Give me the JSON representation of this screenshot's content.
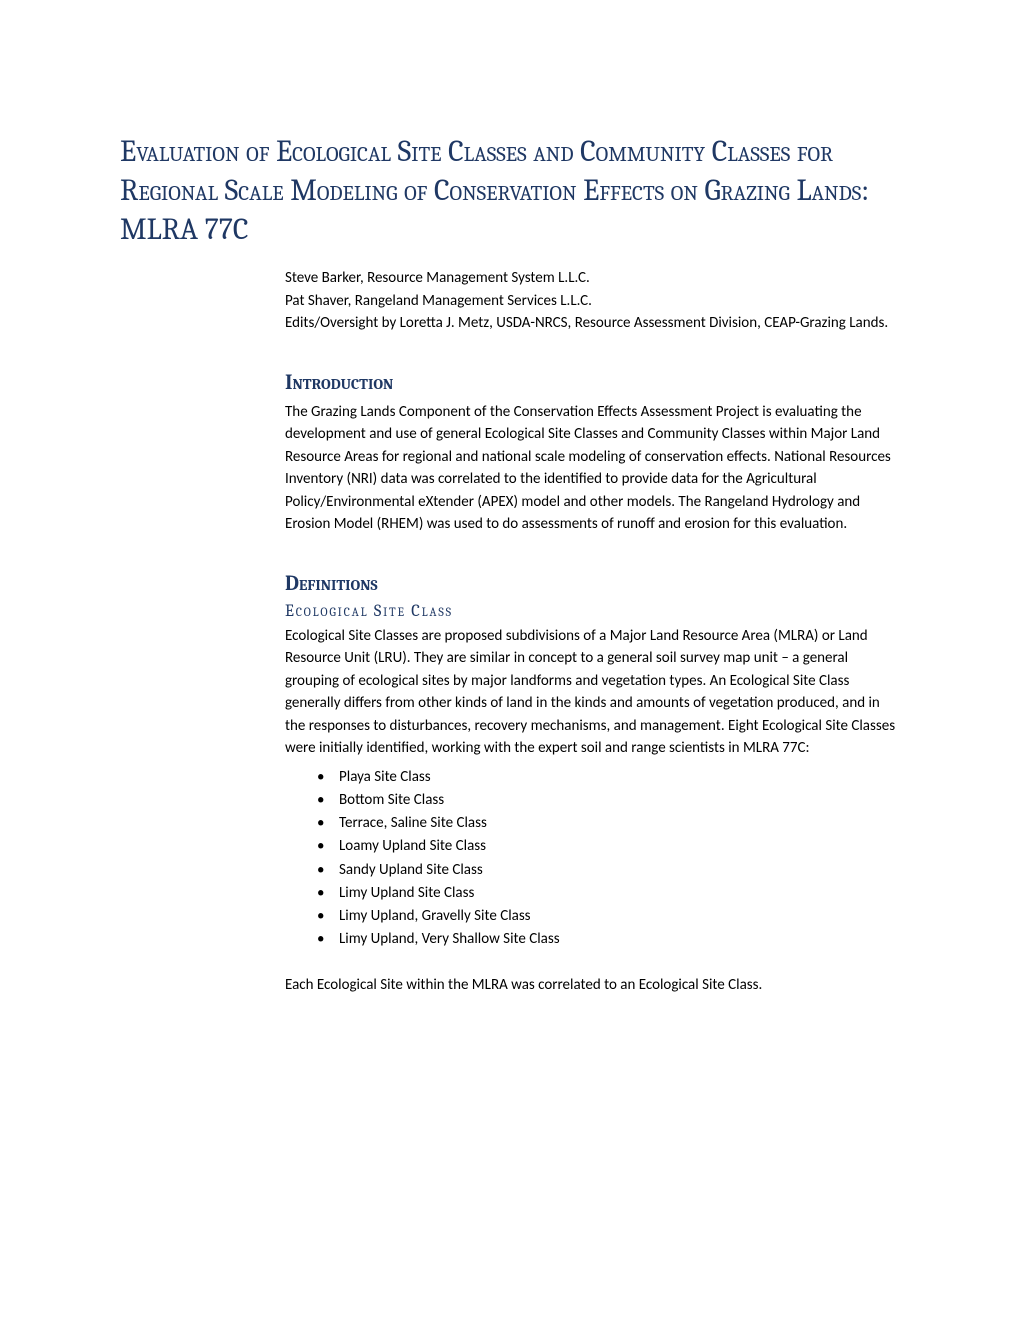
{
  "title": "Evaluation of Ecological Site Classes and Community Classes for Regional Scale Modeling of Conservation Effects on Grazing Lands: MLRA 77C",
  "authors": [
    "Steve Barker, Resource Management System L.L.C.",
    "Pat Shaver, Rangeland Management Services L.L.C.",
    "Edits/Oversight by Loretta J. Metz, USDA-NRCS, Resource Assessment Division, CEAP-Grazing Lands."
  ],
  "intro": {
    "heading": "Introduction",
    "body": "The Grazing Lands Component of the Conservation Effects Assessment Project is evaluating the development and use of general Ecological Site Classes and Community Classes within Major Land Resource Areas for regional and national scale modeling of conservation effects.  National Resources Inventory (NRI) data was correlated to the identified to provide data for the Agricultural Policy/Environmental eXtender (APEX) model and other models. The Rangeland Hydrology and Erosion Model (RHEM) was used to do assessments of runoff and erosion for this evaluation."
  },
  "definitions": {
    "heading": "Definitions",
    "subheading": "Ecological Site Class",
    "body": "Ecological Site Classes are proposed subdivisions of a Major Land Resource Area (MLRA) or Land Resource Unit (LRU). They are similar in concept to a general soil survey map unit – a general grouping of ecological sites by major landforms and vegetation types. An Ecological Site Class generally differs from other kinds of land in the kinds and amounts of vegetation produced, and in the responses to disturbances, recovery mechanisms, and management.  Eight Ecological Site Classes were initially identified, working with the expert soil and range scientists in MLRA 77C:",
    "list": [
      "Playa Site Class",
      "Bottom Site Class",
      "Terrace, Saline Site Class",
      "Loamy Upland Site Class",
      "Sandy Upland Site Class",
      "Limy Upland Site Class",
      "Limy Upland, Gravelly Site Class",
      "Limy Upland, Very Shallow Site Class"
    ],
    "closing": "Each Ecological Site within the MLRA was correlated to an Ecological Site Class."
  },
  "colors": {
    "heading_color": "#1f3864",
    "text_color": "#000000",
    "background": "#ffffff"
  }
}
